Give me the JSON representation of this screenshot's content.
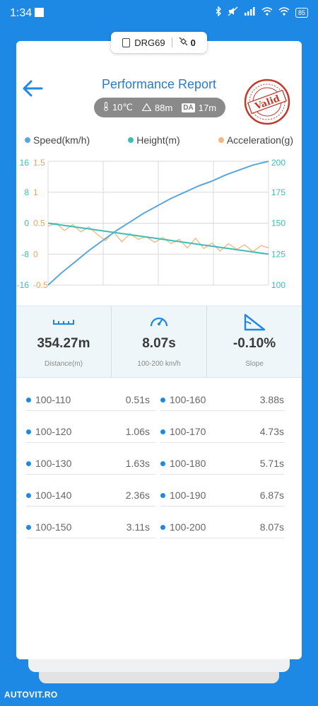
{
  "status_bar": {
    "time": "1:34",
    "battery": "85"
  },
  "device": {
    "name": "DRG69",
    "satellites": "0"
  },
  "header": {
    "title": "Performance Report"
  },
  "conditions": {
    "temperature": "10℃",
    "altitude": "88m",
    "da_label": "DA",
    "density_altitude": "17m"
  },
  "stamp": {
    "text": "Valid",
    "color": "#c0392b"
  },
  "chart_data": {
    "type": "line",
    "series": [
      {
        "name": "Speed(km/h)",
        "color": "#5ba7db",
        "axis": "right",
        "x": [
          0.0,
          0.5,
          1.0,
          1.5,
          2.0,
          2.5,
          3.0,
          3.5,
          4.0,
          4.5,
          5.0,
          5.5,
          6.0,
          6.5,
          7.0,
          7.5,
          8.07
        ],
        "values": [
          100,
          110,
          119,
          128,
          136,
          144,
          151,
          158,
          164,
          170,
          175,
          180,
          184,
          189,
          193,
          197,
          200
        ]
      },
      {
        "name": "Height(m)",
        "color": "#3dbcb6",
        "axis": "left",
        "x": [
          0,
          8.07
        ],
        "values": [
          0.5,
          0
        ]
      },
      {
        "name": "Acceleration(g)",
        "color": "#f4b77c",
        "axis": "left2",
        "x": [
          0.0,
          0.3,
          0.6,
          0.9,
          1.2,
          1.5,
          1.8,
          2.1,
          2.4,
          2.7,
          3.0,
          3.3,
          3.6,
          3.9,
          4.2,
          4.5,
          4.8,
          5.1,
          5.4,
          5.7,
          6.0,
          6.3,
          6.6,
          6.9,
          7.2,
          7.5,
          7.8,
          8.07
        ],
        "values": [
          0.45,
          0.5,
          0.38,
          0.48,
          0.36,
          0.44,
          0.32,
          0.22,
          0.36,
          0.2,
          0.33,
          0.24,
          0.28,
          0.19,
          0.27,
          0.17,
          0.24,
          0.1,
          0.26,
          0.09,
          0.18,
          0.05,
          0.17,
          0.08,
          0.15,
          0.04,
          0.14,
          0.1
        ]
      }
    ],
    "left_axis_1": {
      "ticks": [
        "16",
        "8",
        "0",
        "-8",
        "-16"
      ],
      "range": [
        -16,
        16
      ],
      "color": "#3dbcb6"
    },
    "left_axis_2": {
      "ticks": [
        "1.5",
        "1",
        "0.5",
        "0",
        "-0.5"
      ],
      "range": [
        -0.5,
        1.5
      ],
      "color": "#e9a263"
    },
    "right_axis": {
      "ticks": [
        "200",
        "175",
        "150",
        "125",
        "100"
      ],
      "range": [
        100,
        200
      ],
      "color": "#3dbcb6"
    },
    "grid": true,
    "legend": "top"
  },
  "stats": [
    {
      "value": "354.27m",
      "label": "Distance(m)",
      "icon": "ruler-icon"
    },
    {
      "value": "8.07s",
      "label": "100-200 km/h",
      "icon": "speedometer-icon"
    },
    {
      "value": "-0.10%",
      "label": "Slope",
      "icon": "slope-icon"
    }
  ],
  "splits": [
    {
      "range": "100-110",
      "time": "0.51s"
    },
    {
      "range": "100-120",
      "time": "1.06s"
    },
    {
      "range": "100-130",
      "time": "1.63s"
    },
    {
      "range": "100-140",
      "time": "2.36s"
    },
    {
      "range": "100-150",
      "time": "3.11s"
    },
    {
      "range": "100-160",
      "time": "3.88s"
    },
    {
      "range": "100-170",
      "time": "4.73s"
    },
    {
      "range": "100-180",
      "time": "5.71s"
    },
    {
      "range": "100-190",
      "time": "6.87s"
    },
    {
      "range": "100-200",
      "time": "8.07s"
    }
  ],
  "watermark": "AUTOVIT.RO"
}
